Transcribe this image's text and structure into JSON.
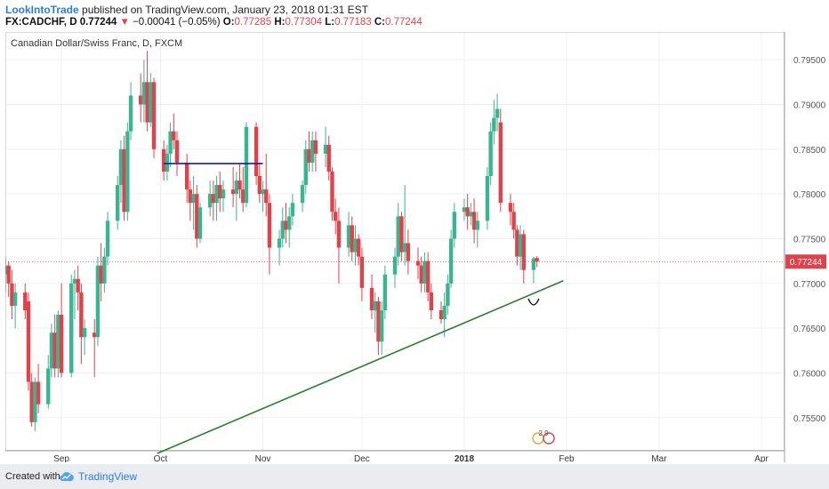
{
  "header": {
    "author": "LookIntoTrade",
    "published_text": "published on TradingView.com, January 23, 2018 01:31 EST",
    "symbol": "FX:CADCHF, D",
    "last": "0.77244",
    "change": "−0.00041 (−0.05%)",
    "o_label": "O:",
    "o_value": "0.77285",
    "h_label": "H:",
    "h_value": "0.77304",
    "l_label": "L:",
    "l_value": "0.77183",
    "c_label": "C:",
    "c_value": "0.77244"
  },
  "footer": {
    "created": "Created with",
    "brand": "TradingView"
  },
  "colors": {
    "up": "#3bb491",
    "down": "#e0424c",
    "trendline": "#2e7d32",
    "hline": "#1a1aa8",
    "price_tag": "#e0424c",
    "grid": "#eef0f3",
    "axis_text": "#555555"
  },
  "chart_data": {
    "type": "candlestick",
    "title": "Canadian Dollar/Swiss Franc, D, FXCM",
    "x_tick_labels": [
      "Sep",
      "Oct",
      "Nov",
      "Dec",
      "2018",
      "Feb",
      "Mar",
      "Apr"
    ],
    "y_tick_labels": [
      "0.79500",
      "0.79000",
      "0.78500",
      "0.78000",
      "0.77500",
      "0.77000",
      "0.76500",
      "0.76000",
      "0.75500"
    ],
    "y_ticks": [
      0.795,
      0.79,
      0.785,
      0.78,
      0.775,
      0.77,
      0.765,
      0.76,
      0.755
    ],
    "ylim": [
      0.7513,
      0.7981
    ],
    "x_axis": {
      "start": "2017-08-15",
      "end": "2018-04-08"
    },
    "current_price": "0.77244",
    "grid": true,
    "candles": [
      {
        "d": "2017-08-15",
        "o": 0.771,
        "h": 0.773,
        "l": 0.769,
        "c": 0.772
      },
      {
        "d": "2017-08-16",
        "o": 0.772,
        "h": 0.7725,
        "l": 0.7685,
        "c": 0.77
      },
      {
        "d": "2017-08-17",
        "o": 0.77,
        "h": 0.7715,
        "l": 0.766,
        "c": 0.7675
      },
      {
        "d": "2017-08-18",
        "o": 0.7675,
        "h": 0.77,
        "l": 0.765,
        "c": 0.769
      },
      {
        "d": "2017-08-21",
        "o": 0.769,
        "h": 0.77,
        "l": 0.766,
        "c": 0.767
      },
      {
        "d": "2017-08-22",
        "o": 0.768,
        "h": 0.769,
        "l": 0.758,
        "c": 0.759
      },
      {
        "d": "2017-08-23",
        "o": 0.759,
        "h": 0.76,
        "l": 0.754,
        "c": 0.7545
      },
      {
        "d": "2017-08-24",
        "o": 0.7545,
        "h": 0.7595,
        "l": 0.7535,
        "c": 0.759
      },
      {
        "d": "2017-08-25",
        "o": 0.759,
        "h": 0.761,
        "l": 0.7555,
        "c": 0.7565
      },
      {
        "d": "2017-08-28",
        "o": 0.7565,
        "h": 0.762,
        "l": 0.756,
        "c": 0.7605
      },
      {
        "d": "2017-08-29",
        "o": 0.7605,
        "h": 0.7655,
        "l": 0.7595,
        "c": 0.7645
      },
      {
        "d": "2017-08-30",
        "o": 0.7645,
        "h": 0.7665,
        "l": 0.7595,
        "c": 0.7605
      },
      {
        "d": "2017-08-31",
        "o": 0.7605,
        "h": 0.767,
        "l": 0.7595,
        "c": 0.7665
      },
      {
        "d": "2017-09-01",
        "o": 0.7665,
        "h": 0.77,
        "l": 0.7595,
        "c": 0.76
      },
      {
        "d": "2017-09-04",
        "o": 0.76,
        "h": 0.771,
        "l": 0.7595,
        "c": 0.77
      },
      {
        "d": "2017-09-05",
        "o": 0.77,
        "h": 0.7715,
        "l": 0.766,
        "c": 0.7705
      },
      {
        "d": "2017-09-06",
        "o": 0.7705,
        "h": 0.772,
        "l": 0.767,
        "c": 0.769
      },
      {
        "d": "2017-09-07",
        "o": 0.769,
        "h": 0.77,
        "l": 0.761,
        "c": 0.764
      },
      {
        "d": "2017-09-08",
        "o": 0.764,
        "h": 0.766,
        "l": 0.762,
        "c": 0.765
      },
      {
        "d": "2017-09-11",
        "o": 0.7645,
        "h": 0.766,
        "l": 0.7595,
        "c": 0.764
      },
      {
        "d": "2017-09-12",
        "o": 0.764,
        "h": 0.773,
        "l": 0.763,
        "c": 0.772
      },
      {
        "d": "2017-09-13",
        "o": 0.772,
        "h": 0.7745,
        "l": 0.768,
        "c": 0.77
      },
      {
        "d": "2017-09-14",
        "o": 0.77,
        "h": 0.774,
        "l": 0.769,
        "c": 0.773
      },
      {
        "d": "2017-09-15",
        "o": 0.773,
        "h": 0.778,
        "l": 0.772,
        "c": 0.777
      },
      {
        "d": "2017-09-18",
        "o": 0.777,
        "h": 0.782,
        "l": 0.776,
        "c": 0.781
      },
      {
        "d": "2017-09-19",
        "o": 0.781,
        "h": 0.786,
        "l": 0.779,
        "c": 0.785
      },
      {
        "d": "2017-09-20",
        "o": 0.785,
        "h": 0.7865,
        "l": 0.777,
        "c": 0.778
      },
      {
        "d": "2017-09-21",
        "o": 0.778,
        "h": 0.788,
        "l": 0.777,
        "c": 0.787
      },
      {
        "d": "2017-09-22",
        "o": 0.787,
        "h": 0.7925,
        "l": 0.786,
        "c": 0.791
      },
      {
        "d": "2017-09-25",
        "o": 0.791,
        "h": 0.7935,
        "l": 0.788,
        "c": 0.79
      },
      {
        "d": "2017-09-26",
        "o": 0.79,
        "h": 0.795,
        "l": 0.788,
        "c": 0.7925
      },
      {
        "d": "2017-09-27",
        "o": 0.7925,
        "h": 0.796,
        "l": 0.787,
        "c": 0.788
      },
      {
        "d": "2017-09-28",
        "o": 0.788,
        "h": 0.7935,
        "l": 0.7875,
        "c": 0.7925
      },
      {
        "d": "2017-09-29",
        "o": 0.7925,
        "h": 0.793,
        "l": 0.784,
        "c": 0.785
      },
      {
        "d": "2017-10-02",
        "o": 0.785,
        "h": 0.786,
        "l": 0.7815,
        "c": 0.7825
      },
      {
        "d": "2017-10-03",
        "o": 0.7825,
        "h": 0.7855,
        "l": 0.7815,
        "c": 0.7845
      },
      {
        "d": "2017-10-04",
        "o": 0.7845,
        "h": 0.788,
        "l": 0.783,
        "c": 0.787
      },
      {
        "d": "2017-10-05",
        "o": 0.787,
        "h": 0.789,
        "l": 0.785,
        "c": 0.786
      },
      {
        "d": "2017-10-06",
        "o": 0.786,
        "h": 0.787,
        "l": 0.782,
        "c": 0.7835
      },
      {
        "d": "2017-10-09",
        "o": 0.7835,
        "h": 0.7845,
        "l": 0.779,
        "c": 0.7805
      },
      {
        "d": "2017-10-10",
        "o": 0.7805,
        "h": 0.7815,
        "l": 0.777,
        "c": 0.779
      },
      {
        "d": "2017-10-11",
        "o": 0.779,
        "h": 0.782,
        "l": 0.776,
        "c": 0.78
      },
      {
        "d": "2017-10-12",
        "o": 0.78,
        "h": 0.781,
        "l": 0.774,
        "c": 0.775
      },
      {
        "d": "2017-10-13",
        "o": 0.775,
        "h": 0.779,
        "l": 0.7745,
        "c": 0.7785
      },
      {
        "d": "2017-10-16",
        "o": 0.7785,
        "h": 0.7815,
        "l": 0.7775,
        "c": 0.78
      },
      {
        "d": "2017-10-17",
        "o": 0.78,
        "h": 0.7815,
        "l": 0.777,
        "c": 0.779
      },
      {
        "d": "2017-10-18",
        "o": 0.779,
        "h": 0.782,
        "l": 0.777,
        "c": 0.781
      },
      {
        "d": "2017-10-19",
        "o": 0.781,
        "h": 0.7825,
        "l": 0.778,
        "c": 0.7795
      },
      {
        "d": "2017-10-20",
        "o": 0.7795,
        "h": 0.7815,
        "l": 0.778,
        "c": 0.7805
      },
      {
        "d": "2017-10-23",
        "o": 0.7805,
        "h": 0.783,
        "l": 0.7785,
        "c": 0.78
      },
      {
        "d": "2017-10-24",
        "o": 0.78,
        "h": 0.7825,
        "l": 0.777,
        "c": 0.7815
      },
      {
        "d": "2017-10-25",
        "o": 0.7815,
        "h": 0.7835,
        "l": 0.7795,
        "c": 0.7805
      },
      {
        "d": "2017-10-26",
        "o": 0.7805,
        "h": 0.783,
        "l": 0.778,
        "c": 0.779
      },
      {
        "d": "2017-10-27",
        "o": 0.779,
        "h": 0.788,
        "l": 0.7785,
        "c": 0.7875
      },
      {
        "d": "2017-10-30",
        "o": 0.7875,
        "h": 0.788,
        "l": 0.781,
        "c": 0.782
      },
      {
        "d": "2017-10-31",
        "o": 0.782,
        "h": 0.7835,
        "l": 0.779,
        "c": 0.78
      },
      {
        "d": "2017-11-01",
        "o": 0.78,
        "h": 0.7815,
        "l": 0.778,
        "c": 0.7805
      },
      {
        "d": "2017-11-02",
        "o": 0.7805,
        "h": 0.7845,
        "l": 0.7775,
        "c": 0.779
      },
      {
        "d": "2017-11-03",
        "o": 0.779,
        "h": 0.78,
        "l": 0.771,
        "c": 0.774
      },
      {
        "d": "2017-11-06",
        "o": 0.774,
        "h": 0.776,
        "l": 0.772,
        "c": 0.775
      },
      {
        "d": "2017-11-07",
        "o": 0.775,
        "h": 0.7785,
        "l": 0.774,
        "c": 0.777
      },
      {
        "d": "2017-11-08",
        "o": 0.777,
        "h": 0.779,
        "l": 0.7745,
        "c": 0.776
      },
      {
        "d": "2017-11-09",
        "o": 0.776,
        "h": 0.7785,
        "l": 0.774,
        "c": 0.7775
      },
      {
        "d": "2017-11-10",
        "o": 0.7775,
        "h": 0.78,
        "l": 0.7765,
        "c": 0.779
      },
      {
        "d": "2017-11-13",
        "o": 0.779,
        "h": 0.7815,
        "l": 0.778,
        "c": 0.781
      },
      {
        "d": "2017-11-14",
        "o": 0.781,
        "h": 0.786,
        "l": 0.78,
        "c": 0.785
      },
      {
        "d": "2017-11-15",
        "o": 0.785,
        "h": 0.787,
        "l": 0.7825,
        "c": 0.7835
      },
      {
        "d": "2017-11-16",
        "o": 0.7835,
        "h": 0.787,
        "l": 0.7825,
        "c": 0.786
      },
      {
        "d": "2017-11-17",
        "o": 0.786,
        "h": 0.787,
        "l": 0.7825,
        "c": 0.7845
      },
      {
        "d": "2017-11-20",
        "o": 0.7845,
        "h": 0.7875,
        "l": 0.783,
        "c": 0.7855
      },
      {
        "d": "2017-11-21",
        "o": 0.7855,
        "h": 0.7865,
        "l": 0.7815,
        "c": 0.7825
      },
      {
        "d": "2017-11-22",
        "o": 0.7825,
        "h": 0.783,
        "l": 0.777,
        "c": 0.778
      },
      {
        "d": "2017-11-23",
        "o": 0.778,
        "h": 0.7795,
        "l": 0.7755,
        "c": 0.777
      },
      {
        "d": "2017-11-24",
        "o": 0.777,
        "h": 0.7785,
        "l": 0.77,
        "c": 0.774
      },
      {
        "d": "2017-11-27",
        "o": 0.774,
        "h": 0.778,
        "l": 0.773,
        "c": 0.7765
      },
      {
        "d": "2017-11-28",
        "o": 0.7765,
        "h": 0.7775,
        "l": 0.7725,
        "c": 0.7735
      },
      {
        "d": "2017-11-29",
        "o": 0.7735,
        "h": 0.7765,
        "l": 0.772,
        "c": 0.775
      },
      {
        "d": "2017-11-30",
        "o": 0.775,
        "h": 0.7755,
        "l": 0.772,
        "c": 0.773
      },
      {
        "d": "2017-12-01",
        "o": 0.773,
        "h": 0.774,
        "l": 0.768,
        "c": 0.7695
      },
      {
        "d": "2017-12-04",
        "o": 0.7695,
        "h": 0.771,
        "l": 0.766,
        "c": 0.767
      },
      {
        "d": "2017-12-05",
        "o": 0.767,
        "h": 0.769,
        "l": 0.7645,
        "c": 0.768
      },
      {
        "d": "2017-12-06",
        "o": 0.768,
        "h": 0.7685,
        "l": 0.762,
        "c": 0.7635
      },
      {
        "d": "2017-12-07",
        "o": 0.7635,
        "h": 0.768,
        "l": 0.762,
        "c": 0.767
      },
      {
        "d": "2017-12-08",
        "o": 0.767,
        "h": 0.772,
        "l": 0.766,
        "c": 0.771
      },
      {
        "d": "2017-12-11",
        "o": 0.771,
        "h": 0.774,
        "l": 0.7695,
        "c": 0.773
      },
      {
        "d": "2017-12-12",
        "o": 0.773,
        "h": 0.779,
        "l": 0.772,
        "c": 0.7775
      },
      {
        "d": "2017-12-13",
        "o": 0.7775,
        "h": 0.778,
        "l": 0.7725,
        "c": 0.7735
      },
      {
        "d": "2017-12-14",
        "o": 0.7735,
        "h": 0.781,
        "l": 0.772,
        "c": 0.7745
      },
      {
        "d": "2017-12-15",
        "o": 0.7745,
        "h": 0.776,
        "l": 0.771,
        "c": 0.7725
      },
      {
        "d": "2017-12-18",
        "o": 0.7725,
        "h": 0.774,
        "l": 0.7705,
        "c": 0.772
      },
      {
        "d": "2017-12-19",
        "o": 0.772,
        "h": 0.773,
        "l": 0.769,
        "c": 0.77
      },
      {
        "d": "2017-12-20",
        "o": 0.77,
        "h": 0.7735,
        "l": 0.769,
        "c": 0.7725
      },
      {
        "d": "2017-12-21",
        "o": 0.7725,
        "h": 0.7735,
        "l": 0.768,
        "c": 0.769
      },
      {
        "d": "2017-12-22",
        "o": 0.769,
        "h": 0.77,
        "l": 0.766,
        "c": 0.767
      },
      {
        "d": "2017-12-25",
        "o": 0.767,
        "h": 0.768,
        "l": 0.7655,
        "c": 0.766
      },
      {
        "d": "2017-12-26",
        "o": 0.766,
        "h": 0.769,
        "l": 0.764,
        "c": 0.7675
      },
      {
        "d": "2017-12-27",
        "o": 0.7675,
        "h": 0.771,
        "l": 0.7665,
        "c": 0.77
      },
      {
        "d": "2017-12-28",
        "o": 0.77,
        "h": 0.776,
        "l": 0.7695,
        "c": 0.775
      },
      {
        "d": "2017-12-29",
        "o": 0.775,
        "h": 0.779,
        "l": 0.774,
        "c": 0.778
      },
      {
        "d": "2018-01-01",
        "o": 0.778,
        "h": 0.7795,
        "l": 0.777,
        "c": 0.7785
      },
      {
        "d": "2018-01-02",
        "o": 0.7785,
        "h": 0.78,
        "l": 0.776,
        "c": 0.7775
      },
      {
        "d": "2018-01-03",
        "o": 0.7775,
        "h": 0.779,
        "l": 0.7765,
        "c": 0.778
      },
      {
        "d": "2018-01-04",
        "o": 0.778,
        "h": 0.7795,
        "l": 0.7745,
        "c": 0.776
      },
      {
        "d": "2018-01-05",
        "o": 0.776,
        "h": 0.778,
        "l": 0.774,
        "c": 0.777
      },
      {
        "d": "2018-01-08",
        "o": 0.777,
        "h": 0.783,
        "l": 0.776,
        "c": 0.782
      },
      {
        "d": "2018-01-09",
        "o": 0.782,
        "h": 0.788,
        "l": 0.781,
        "c": 0.787
      },
      {
        "d": "2018-01-10",
        "o": 0.787,
        "h": 0.7905,
        "l": 0.7855,
        "c": 0.7885
      },
      {
        "d": "2018-01-11",
        "o": 0.7885,
        "h": 0.7912,
        "l": 0.787,
        "c": 0.7895
      },
      {
        "d": "2018-01-12",
        "o": 0.788,
        "h": 0.7895,
        "l": 0.778,
        "c": 0.779
      },
      {
        "d": "2018-01-15",
        "o": 0.779,
        "h": 0.78,
        "l": 0.7765,
        "c": 0.778
      },
      {
        "d": "2018-01-16",
        "o": 0.778,
        "h": 0.779,
        "l": 0.775,
        "c": 0.776
      },
      {
        "d": "2018-01-17",
        "o": 0.776,
        "h": 0.7765,
        "l": 0.772,
        "c": 0.773
      },
      {
        "d": "2018-01-18",
        "o": 0.773,
        "h": 0.7765,
        "l": 0.7715,
        "c": 0.7755
      },
      {
        "d": "2018-01-19",
        "o": 0.7755,
        "h": 0.776,
        "l": 0.77,
        "c": 0.7715
      },
      {
        "d": "2018-01-22",
        "o": 0.7715,
        "h": 0.773,
        "l": 0.77,
        "c": 0.7728
      },
      {
        "d": "2018-01-23",
        "o": 0.77285,
        "h": 0.77304,
        "l": 0.77183,
        "c": 0.77244
      }
    ],
    "trendline": {
      "from": {
        "d": "2017-09-30",
        "p": 0.751
      },
      "to": {
        "d": "2018-01-31",
        "p": 0.7703
      }
    },
    "horizontal_line": {
      "from": {
        "d": "2017-10-02",
        "p": 0.7834
      },
      "to": {
        "d": "2017-11-01",
        "p": 0.7834
      }
    },
    "annotations": [
      {
        "type": "smile-arc",
        "d": "2018-01-22",
        "p": 0.7683
      },
      {
        "type": "event-marker",
        "d": "2018-01-25",
        "label": "2 9"
      }
    ]
  }
}
